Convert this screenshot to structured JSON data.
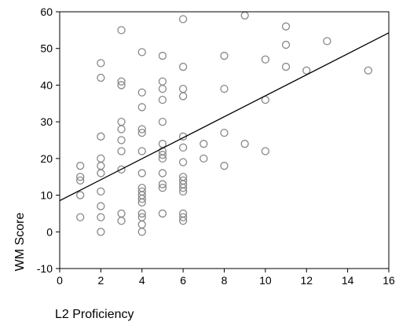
{
  "chart_data": {
    "type": "scatter",
    "xlabel": "L2 Proficiency",
    "ylabel": "WM Score",
    "xlim": [
      0,
      16
    ],
    "ylim": [
      -10,
      60
    ],
    "xticks": [
      "0",
      "2",
      "4",
      "6",
      "8",
      "10",
      "12",
      "14",
      "16"
    ],
    "yticks": [
      "-10",
      "0",
      "10",
      "20",
      "30",
      "40",
      "50",
      "60"
    ],
    "grid": false,
    "marker": "open-circle",
    "marker_color": "#888888",
    "trendline": {
      "intercept": 8.5,
      "slope": 2.86,
      "color": "#000000"
    },
    "points": [
      [
        1,
        18
      ],
      [
        1,
        15
      ],
      [
        1,
        14
      ],
      [
        1,
        10
      ],
      [
        1,
        4
      ],
      [
        2,
        46
      ],
      [
        2,
        42
      ],
      [
        2,
        26
      ],
      [
        2,
        20
      ],
      [
        2,
        18
      ],
      [
        2,
        16
      ],
      [
        2,
        11
      ],
      [
        2,
        7
      ],
      [
        2,
        4
      ],
      [
        2,
        0
      ],
      [
        3,
        55
      ],
      [
        3,
        41
      ],
      [
        3,
        40
      ],
      [
        3,
        30
      ],
      [
        3,
        28
      ],
      [
        3,
        25
      ],
      [
        3,
        22
      ],
      [
        3,
        17
      ],
      [
        3,
        5
      ],
      [
        3,
        3
      ],
      [
        4,
        49
      ],
      [
        4,
        38
      ],
      [
        4,
        34
      ],
      [
        4,
        28
      ],
      [
        4,
        27
      ],
      [
        4,
        22
      ],
      [
        4,
        16
      ],
      [
        4,
        12
      ],
      [
        4,
        11
      ],
      [
        4,
        10
      ],
      [
        4,
        9
      ],
      [
        4,
        8
      ],
      [
        4,
        5
      ],
      [
        4,
        4
      ],
      [
        4,
        2
      ],
      [
        4,
        0
      ],
      [
        5,
        48
      ],
      [
        5,
        41
      ],
      [
        5,
        39
      ],
      [
        5,
        36
      ],
      [
        5,
        30
      ],
      [
        5,
        24
      ],
      [
        5,
        22
      ],
      [
        5,
        21
      ],
      [
        5,
        20
      ],
      [
        5,
        16
      ],
      [
        5,
        13
      ],
      [
        5,
        12
      ],
      [
        5,
        5
      ],
      [
        6,
        58
      ],
      [
        6,
        45
      ],
      [
        6,
        39
      ],
      [
        6,
        37
      ],
      [
        6,
        26
      ],
      [
        6,
        23
      ],
      [
        6,
        19
      ],
      [
        6,
        15
      ],
      [
        6,
        14
      ],
      [
        6,
        13
      ],
      [
        6,
        12
      ],
      [
        6,
        11
      ],
      [
        6,
        5
      ],
      [
        6,
        4
      ],
      [
        6,
        3
      ],
      [
        7,
        24
      ],
      [
        7,
        20
      ],
      [
        8,
        48
      ],
      [
        8,
        39
      ],
      [
        8,
        27
      ],
      [
        8,
        18
      ],
      [
        9,
        59
      ],
      [
        9,
        24
      ],
      [
        10,
        47
      ],
      [
        10,
        36
      ],
      [
        10,
        22
      ],
      [
        11,
        56
      ],
      [
        11,
        51
      ],
      [
        11,
        45
      ],
      [
        12,
        44
      ],
      [
        13,
        52
      ],
      [
        15,
        44
      ]
    ]
  }
}
